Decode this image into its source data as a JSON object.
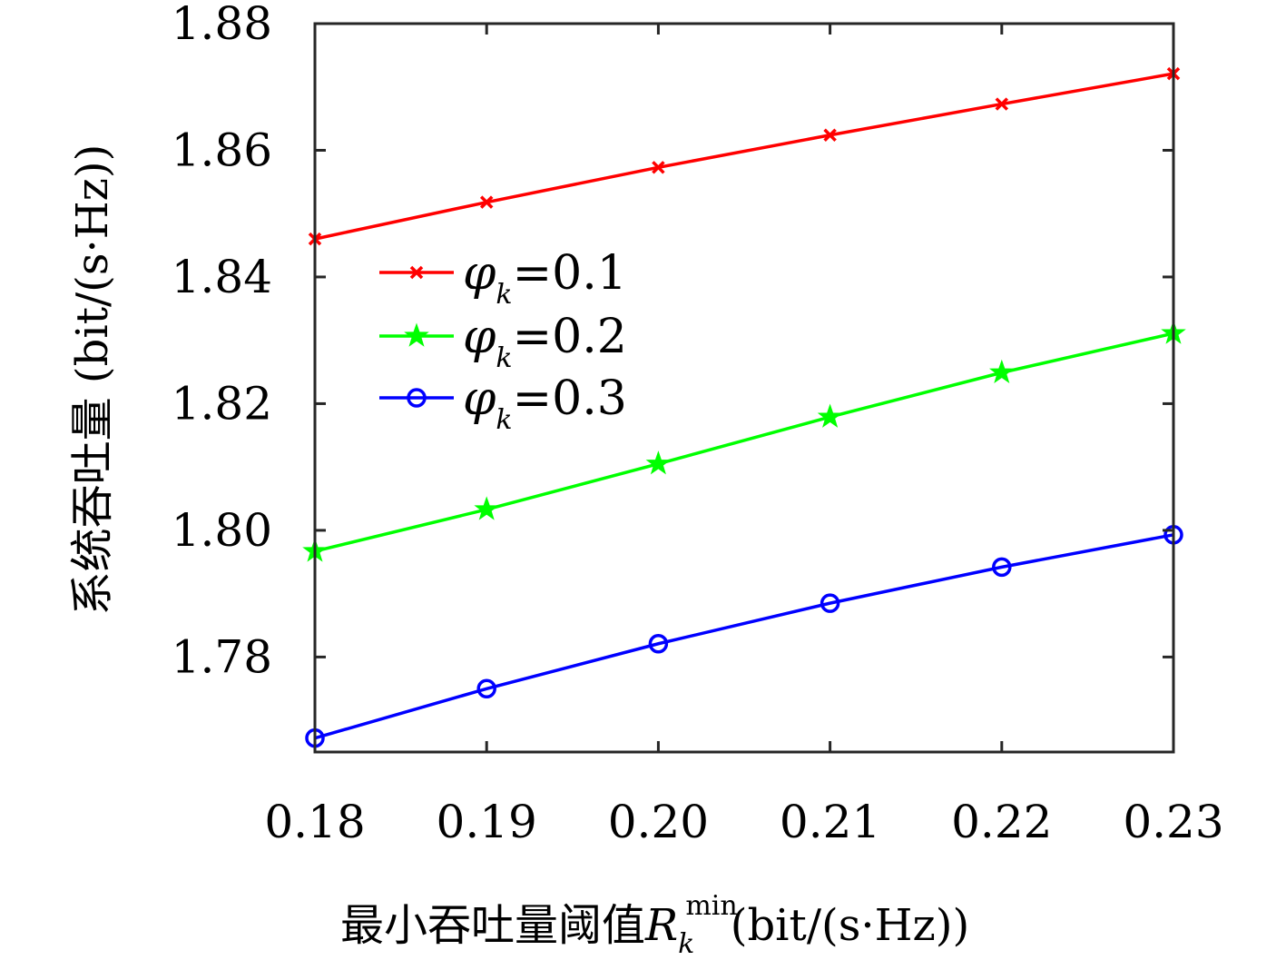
{
  "chart_data": {
    "type": "line",
    "x": [
      0.18,
      0.19,
      0.2,
      0.21,
      0.22,
      0.23
    ],
    "x_tick_labels": [
      "0.18",
      "0.19",
      "0.20",
      "0.21",
      "0.22",
      "0.23"
    ],
    "y_tick_values": [
      1.78,
      1.8,
      1.82,
      1.84,
      1.86,
      1.88
    ],
    "y_tick_labels": [
      "1.78",
      "1.80",
      "1.82",
      "1.84",
      "1.86",
      "1.88"
    ],
    "xlim": [
      0.18,
      0.23
    ],
    "ylim": [
      1.765,
      1.88
    ],
    "xlabel_prefix": "最小吞吐量阈值",
    "xlabel_symbol": "R",
    "xlabel_subscript": "k",
    "xlabel_superscript": "min",
    "xlabel_suffix": "(bit/(s·Hz))",
    "ylabel": "系统吞吐量 (bit/(s·Hz))",
    "grid": false,
    "legend_position": "center-left",
    "series": [
      {
        "name_symbol": "φ",
        "name_subscript": "k",
        "name_value": "=0.1",
        "color": "#ff0000",
        "marker": "x",
        "values": [
          1.846,
          1.8518,
          1.8573,
          1.8624,
          1.8673,
          1.8721
        ]
      },
      {
        "name_symbol": "φ",
        "name_subscript": "k",
        "name_value": "=0.2",
        "color": "#00ff00",
        "marker": "star",
        "values": [
          1.7967,
          1.8033,
          1.8105,
          1.8179,
          1.8249,
          1.8311
        ]
      },
      {
        "name_symbol": "φ",
        "name_subscript": "k",
        "name_value": "=0.3",
        "color": "#0000ff",
        "marker": "circle",
        "values": [
          1.7672,
          1.775,
          1.7821,
          1.7885,
          1.7942,
          1.7993
        ]
      }
    ]
  }
}
